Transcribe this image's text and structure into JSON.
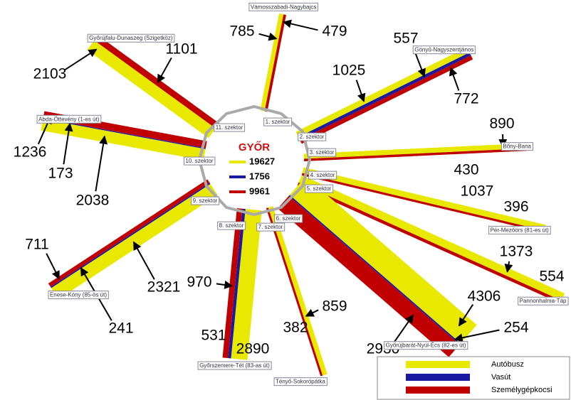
{
  "center": {
    "title": "GYŐR",
    "totals": [
      19627,
      1756,
      9961
    ]
  },
  "legend": [
    "Autóbusz",
    "Vasút",
    "Személygépkocsi"
  ],
  "corridors": [
    {
      "name": "Vámosszabadi-Nagybajcs",
      "sector": "1. szektor",
      "bus": 785,
      "car": 479
    },
    {
      "name": "Gönyű-Nagyszentjános",
      "sector": "2. szektor",
      "bus": 1025,
      "rail": 557,
      "car": 772
    },
    {
      "name": "Bőny-Bana",
      "sector": "3. szektor",
      "bus": 890,
      "car": 430
    },
    {
      "name": "Pér-Mezőörs (81-es út)",
      "sector": "4. szektor",
      "bus": 1037,
      "car": 396
    },
    {
      "name": "Pannonhalma-Táp",
      "sector": "5. szektor",
      "bus": 1373,
      "car": 554
    },
    {
      "name": "Győrújbarát-Nyúl-Écs (82-es út)",
      "sector": "6. szektor",
      "bus": 4306,
      "rail": 254,
      "car": 2930
    },
    {
      "name": "Tényő-Sokorópátka",
      "sector": "7. szektor",
      "bus": 859,
      "car": 382
    },
    {
      "name": "Győrszemere-Tét (83-as út)",
      "sector": "8. szektor",
      "bus": 2890,
      "rail": 531,
      "car": 970
    },
    {
      "name": "Enese-Kóny (85-ös út)",
      "sector": "9. szektor",
      "bus": 2321,
      "rail": 241,
      "car": 711
    },
    {
      "name": "Abda-Öttevény (1-es út)",
      "sector": "10. szektor",
      "bus": 2038,
      "rail": 173,
      "car": 1236
    },
    {
      "name": "Győrújfalu-Dunaszeg (Szigetköz)",
      "sector": "11. szektor",
      "bus": 2103,
      "car": 1101
    }
  ]
}
